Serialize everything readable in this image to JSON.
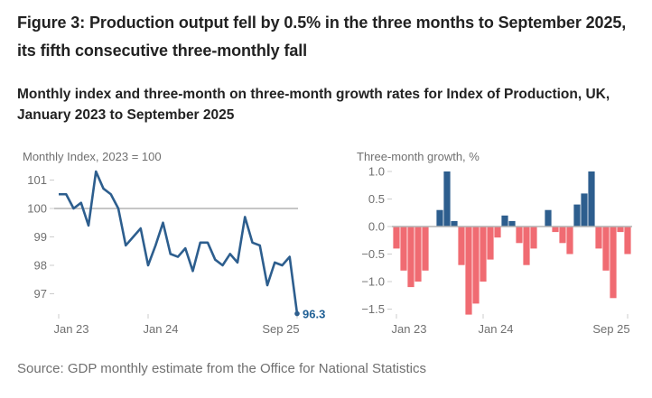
{
  "title": "Figure 3: Production output fell by 0.5% in the three months to September 2025, its fifth consecutive three-monthly fall",
  "subtitle": "Monthly index and three-month on three-month growth rates for Index of Production, UK, January 2023 to September 2025",
  "source": "Source: GDP monthly estimate from the Office for National Statistics",
  "colors": {
    "line": "#2d5e8e",
    "positive": "#2d5e8e",
    "negative": "#f06b72",
    "reference": "#b3b3b3",
    "text": "#707070"
  },
  "chart_data": [
    {
      "type": "line",
      "title": "",
      "ylabel": "Monthly Index, 2023 = 100",
      "xlabel": "",
      "ylim": [
        96,
        101.5
      ],
      "yticks": [
        97,
        98,
        99,
        100,
        101
      ],
      "ytick_labels": [
        "97",
        "98",
        "99",
        "100",
        "101"
      ],
      "xtick_labels": [
        {
          "index": 0,
          "label": "Jan 23"
        },
        {
          "index": 12,
          "label": "Jan 24"
        },
        {
          "index": 32,
          "label": "Sep 25"
        }
      ],
      "reference_line": 100,
      "end_label": "96.3",
      "x": [
        "Jan 23",
        "Feb 23",
        "Mar 23",
        "Apr 23",
        "May 23",
        "Jun 23",
        "Jul 23",
        "Aug 23",
        "Sep 23",
        "Oct 23",
        "Nov 23",
        "Dec 23",
        "Jan 24",
        "Feb 24",
        "Mar 24",
        "Apr 24",
        "May 24",
        "Jun 24",
        "Jul 24",
        "Aug 24",
        "Sep 24",
        "Oct 24",
        "Nov 24",
        "Dec 24",
        "Jan 25",
        "Feb 25",
        "Mar 25",
        "Apr 25",
        "May 25",
        "Jun 25",
        "Jul 25",
        "Aug 25",
        "Sep 25"
      ],
      "series": [
        {
          "name": "Monthly Index",
          "values": [
            100.5,
            100.5,
            100.0,
            100.2,
            99.4,
            101.3,
            100.7,
            100.5,
            100.0,
            98.7,
            99.0,
            99.3,
            98.0,
            98.7,
            99.5,
            98.4,
            98.3,
            98.6,
            97.8,
            98.8,
            98.8,
            98.2,
            98.0,
            98.4,
            98.1,
            99.7,
            98.8,
            98.7,
            97.3,
            98.1,
            98.0,
            98.3,
            96.3
          ]
        }
      ]
    },
    {
      "type": "bar",
      "title": "",
      "ylabel": "Three-month growth, %",
      "xlabel": "",
      "ylim": [
        -1.6,
        1.05
      ],
      "yticks": [
        -1.5,
        -1.0,
        -0.5,
        0.0,
        0.5,
        1.0
      ],
      "ytick_labels": [
        "−1.5",
        "−1.0",
        "−0.5",
        "0.0",
        "0.5",
        "1.0"
      ],
      "xtick_labels": [
        {
          "index": 0,
          "label": "Jan 23"
        },
        {
          "index": 12,
          "label": "Jan 24"
        },
        {
          "index": 32,
          "label": "Sep 25"
        }
      ],
      "categories": [
        "Jan 23",
        "Feb 23",
        "Mar 23",
        "Apr 23",
        "May 23",
        "Jun 23",
        "Jul 23",
        "Aug 23",
        "Sep 23",
        "Oct 23",
        "Nov 23",
        "Dec 23",
        "Jan 24",
        "Feb 24",
        "Mar 24",
        "Apr 24",
        "May 24",
        "Jun 24",
        "Jul 24",
        "Aug 24",
        "Sep 24",
        "Oct 24",
        "Nov 24",
        "Dec 24",
        "Jan 25",
        "Feb 25",
        "Mar 25",
        "Apr 25",
        "May 25",
        "Jun 25",
        "Jul 25",
        "Aug 25",
        "Sep 25"
      ],
      "values": [
        -0.4,
        -0.8,
        -1.1,
        -1.0,
        -0.8,
        0.0,
        0.3,
        1.0,
        0.1,
        -0.7,
        -1.6,
        -1.4,
        -1.0,
        -0.6,
        -0.2,
        0.2,
        0.1,
        -0.3,
        -0.7,
        -0.4,
        0.0,
        0.3,
        -0.1,
        -0.3,
        -0.5,
        0.4,
        0.6,
        1.0,
        -0.4,
        -0.8,
        -1.3,
        -0.1,
        -0.5
      ]
    }
  ]
}
